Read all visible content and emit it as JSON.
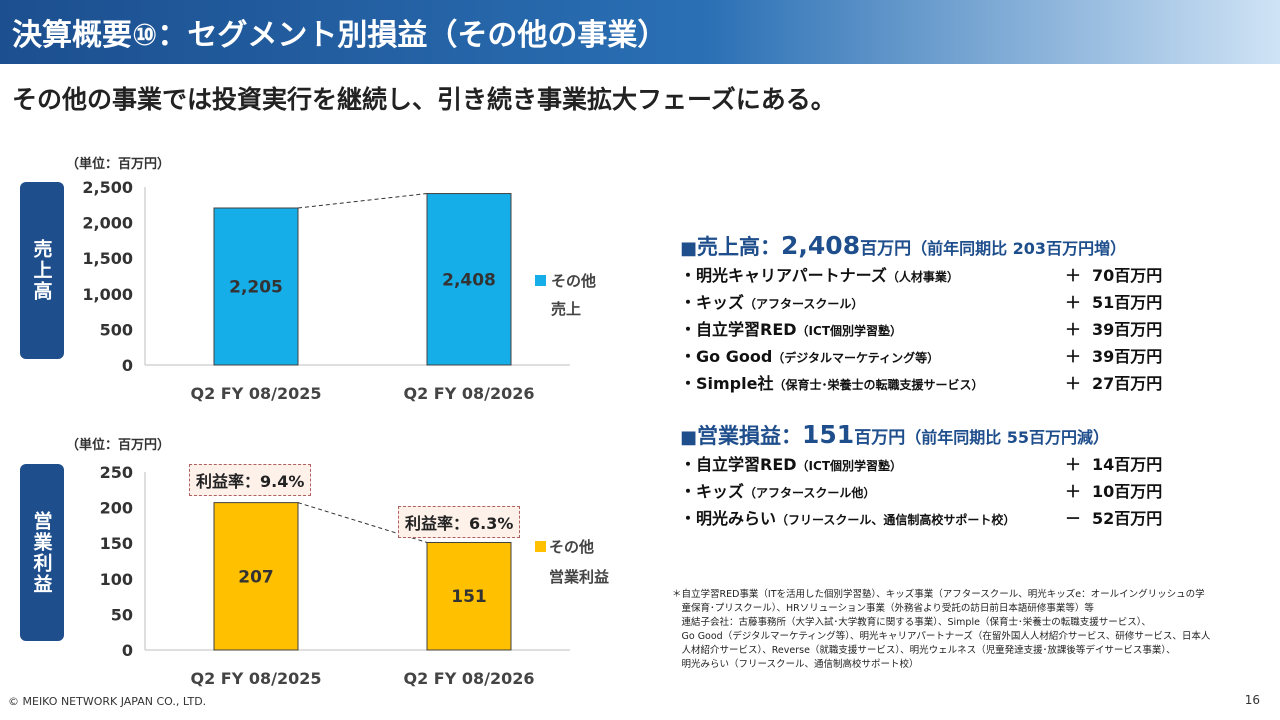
{
  "header": {
    "title": "決算概要⑩：セグメント別損益（その他の事業）"
  },
  "subtitle": "その他の事業では投資実行を継続し、引き続き事業拡大フェーズにある。",
  "unit_label": "（単位：百万円）",
  "sales_side_label": "売上高",
  "profit_side_label": "営業利益",
  "colors": {
    "header": "#1c4f8f",
    "sales_bar": "#16aee8",
    "profit_bar": "#ffc000",
    "accent": "#1f4e8c"
  },
  "chart_data": [
    {
      "type": "bar",
      "title": "売上高",
      "categories": [
        "Q2 FY 08/2025",
        "Q2 FY 08/2026"
      ],
      "values": [
        2205,
        2408
      ],
      "value_labels": [
        "2,205",
        "2,408"
      ],
      "ylim": [
        0,
        2500
      ],
      "yticks": [
        0,
        500,
        1000,
        1500,
        2000,
        2500
      ],
      "ytick_labels": [
        "0",
        "500",
        "1,000",
        "1,500",
        "2,000",
        "2,500"
      ],
      "legend": [
        "その他",
        "売上"
      ],
      "legend_position": "right"
    },
    {
      "type": "bar",
      "title": "営業利益",
      "categories": [
        "Q2 FY 08/2025",
        "Q2 FY 08/2026"
      ],
      "values": [
        207,
        151
      ],
      "value_labels": [
        "207",
        "151"
      ],
      "ylim": [
        0,
        250
      ],
      "yticks": [
        0,
        50,
        100,
        150,
        200,
        250
      ],
      "ytick_labels": [
        "0",
        "50",
        "100",
        "150",
        "200",
        "250"
      ],
      "legend": [
        "その他",
        "営業利益"
      ],
      "legend_position": "right",
      "annotations": [
        "利益率：9.4%",
        "利益率：6.3%"
      ]
    }
  ],
  "summary": {
    "sales": {
      "bullet": "■",
      "label": "売上高：",
      "value": "2,408",
      "unit": "百万円",
      "note": "（前年同期比 203百万円増）",
      "items": [
        {
          "name": "・明光キャリアパートナーズ",
          "sub": "（人材事業）",
          "sign": "＋",
          "amount": "70百万円"
        },
        {
          "name": "・キッズ",
          "sub": "（アフタースクール）",
          "sign": "＋",
          "amount": "51百万円"
        },
        {
          "name": "・自立学習RED",
          "sub": "（ICT個別学習塾）",
          "sign": "＋",
          "amount": "39百万円"
        },
        {
          "name": "・Go Good",
          "sub": "（デジタルマーケティング等）",
          "sign": "＋",
          "amount": "39百万円"
        },
        {
          "name": "・Simple社",
          "sub": "（保育士･栄養士の転職支援サービス）",
          "sign": "＋",
          "amount": "27百万円"
        }
      ]
    },
    "profit": {
      "bullet": "■",
      "label": "営業損益：",
      "value": "151",
      "unit": "百万円",
      "note": "（前年同期比 55百万円減）",
      "items": [
        {
          "name": "・自立学習RED",
          "sub": "（ICT個別学習塾）",
          "sign": "＋",
          "amount": "14百万円"
        },
        {
          "name": "・キッズ",
          "sub": "（アフタースクール他）",
          "sign": "＋",
          "amount": "10百万円"
        },
        {
          "name": "・明光みらい",
          "sub": "（フリースクール、通信制高校サポート校）",
          "sign": "－",
          "amount": "52百万円"
        }
      ]
    }
  },
  "footnote": [
    "＊自立学習RED事業（ITを活用した個別学習塾）、キッズ事業（アフタースクール、明光キッズe：オールイングリッシュの学",
    "　童保育･プリスクール）、HRソリューション事業（外務省より受託の訪日前日本語研修事業等）等",
    "　連結子会社：古藤事務所（大学入試･大学教育に関する事業）、Simple（保育士･栄養士の転職支援サービス）、",
    "　Go Good（デジタルマーケティング等）、明光キャリアパートナーズ（在留外国人人材紹介サービス、研修サービス、日本人",
    "　人材紹介サービス）、Reverse（就職支援サービス）、明光ウェルネス（児童発達支援･放課後等デイサービス事業）、",
    "　明光みらい（フリースクール、通信制高校サポート校）"
  ],
  "footer": "© MEIKO NETWORK JAPAN CO., LTD.",
  "page_number": "16"
}
